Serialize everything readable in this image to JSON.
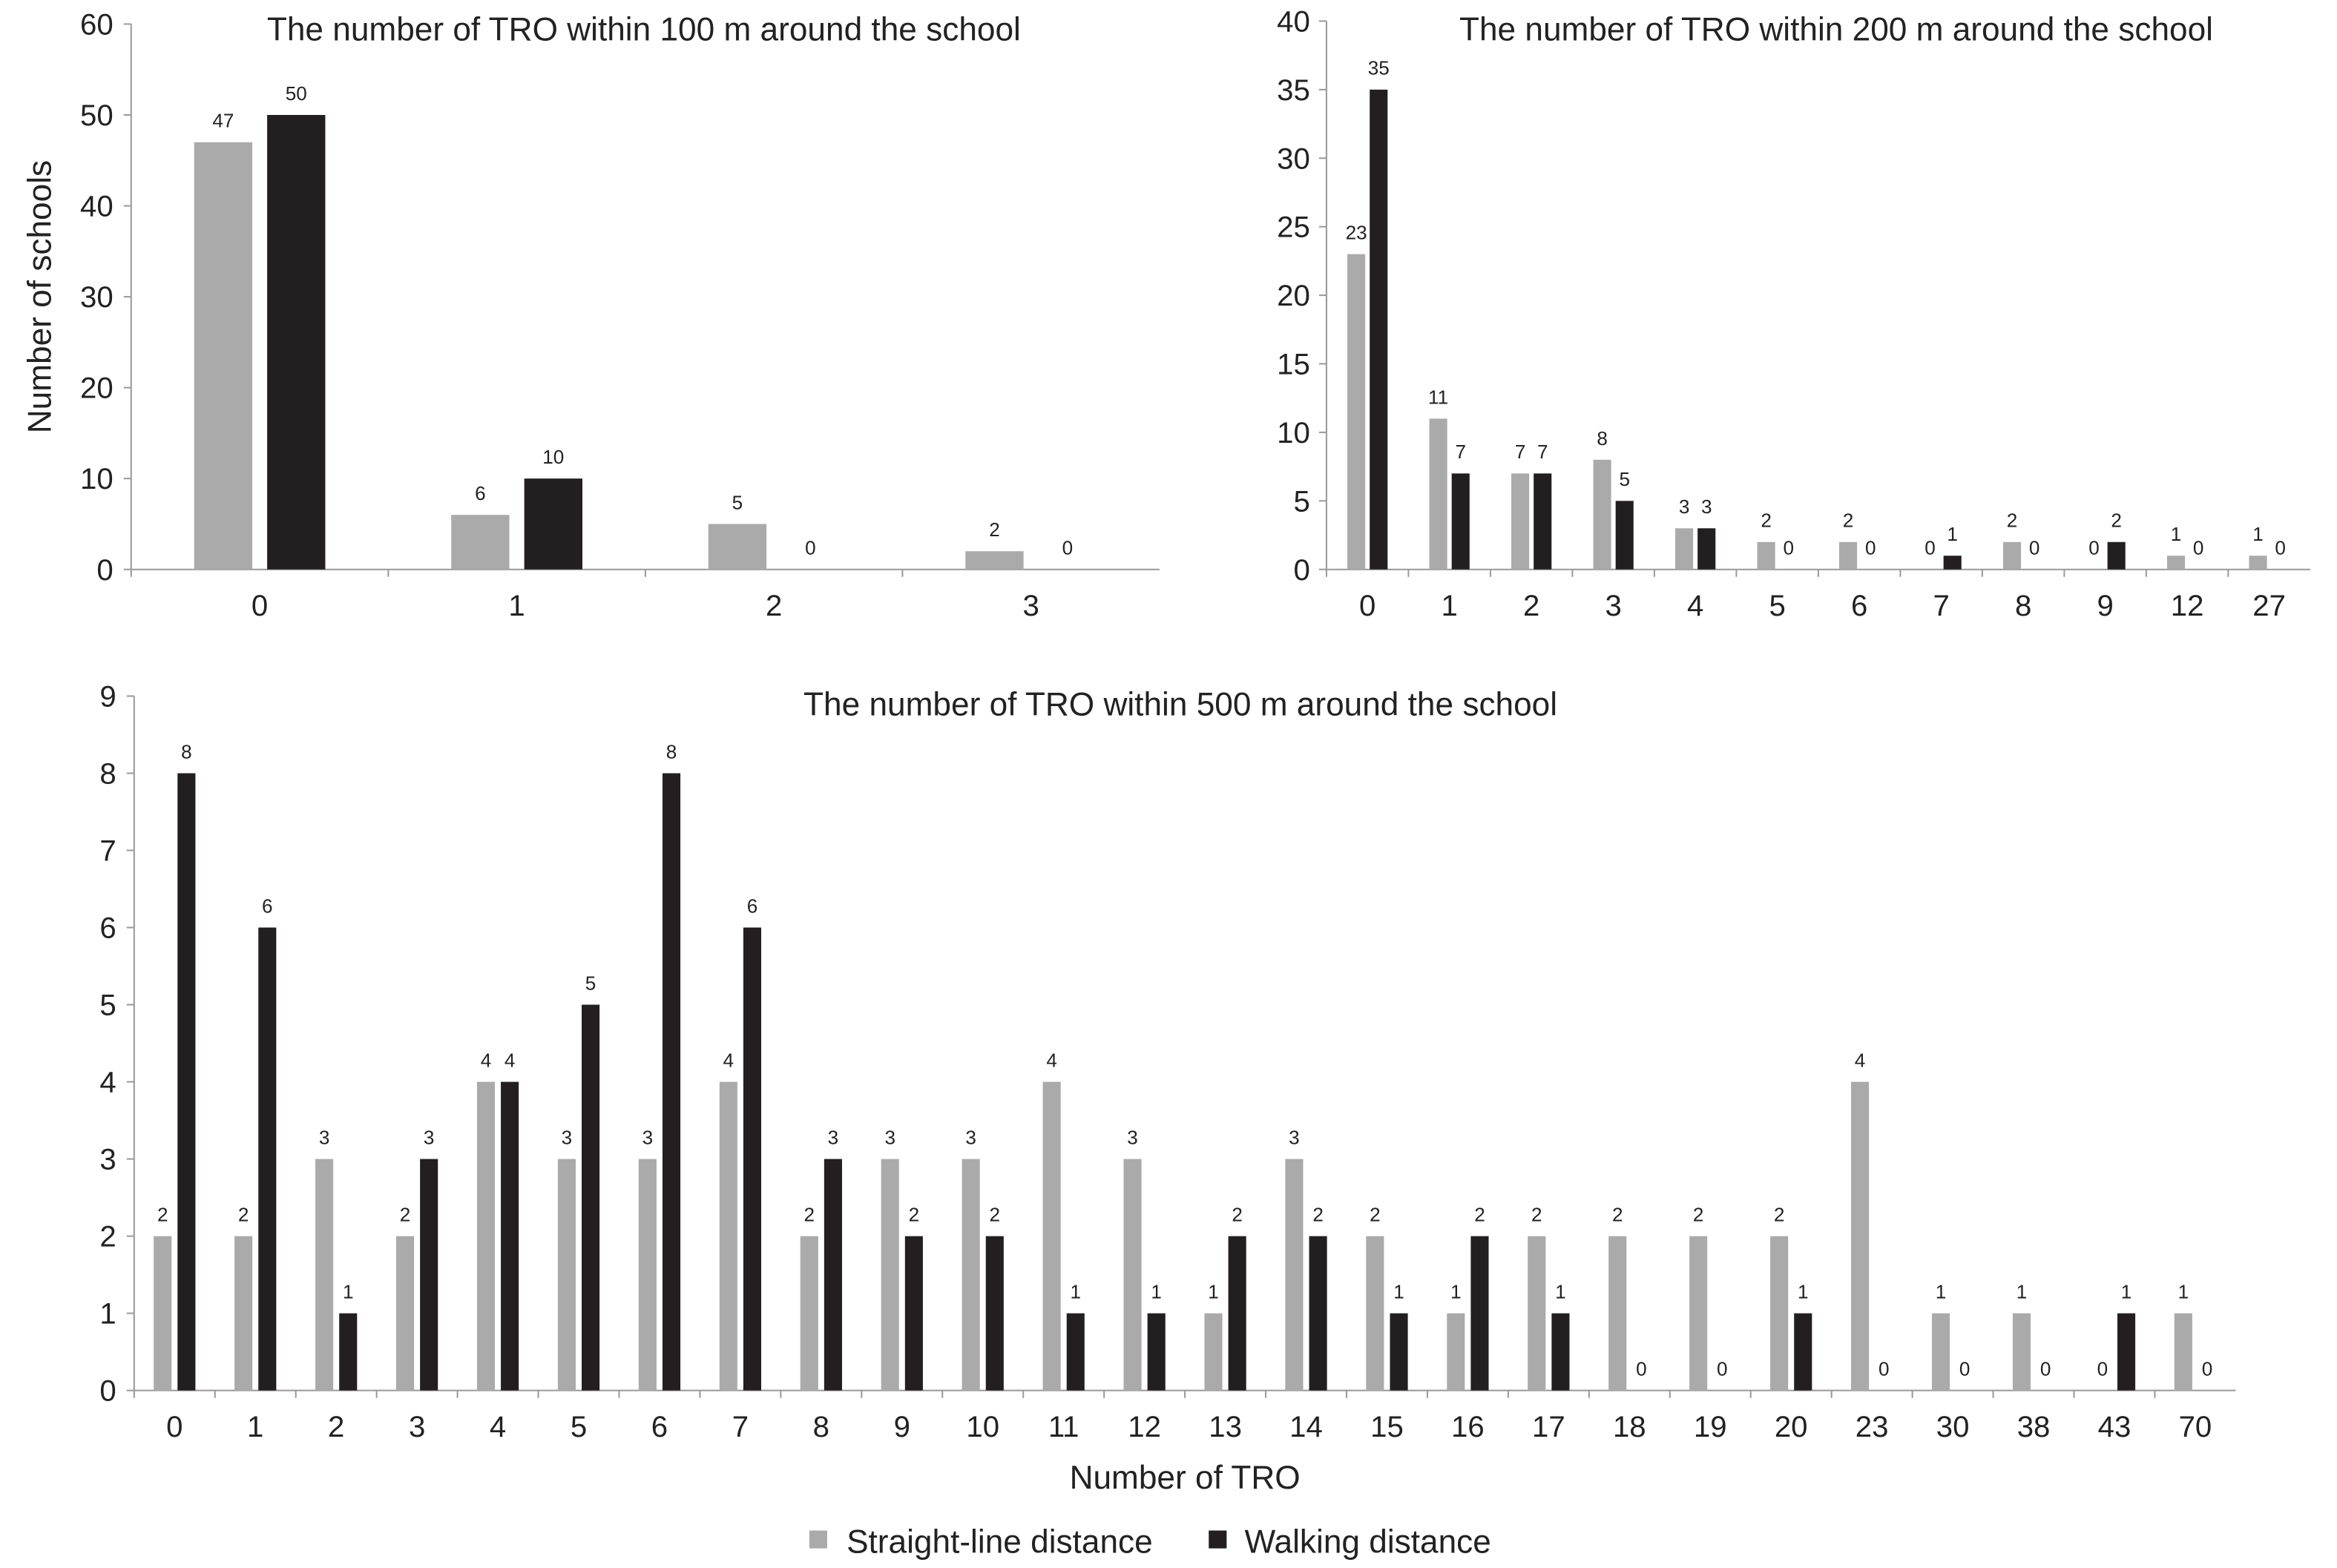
{
  "colors": {
    "straight": "#aaaaaa",
    "walking": "#231f20",
    "axis": "#999999"
  },
  "legend": {
    "straight": "Straight-line distance",
    "walking": "Walking distance"
  },
  "chart_data": [
    {
      "type": "bar",
      "title": "The number of TRO within 100 m around the school",
      "xlabel": "",
      "ylabel": "Number of schools",
      "ylim": [
        0,
        60
      ],
      "yticks": [
        0,
        10,
        20,
        30,
        40,
        50,
        60
      ],
      "categories": [
        "0",
        "1",
        "2",
        "3"
      ],
      "series": [
        {
          "name": "Straight-line distance",
          "values": [
            47,
            6,
            5,
            2
          ]
        },
        {
          "name": "Walking distance",
          "values": [
            50,
            10,
            0,
            0
          ]
        }
      ],
      "legend": "bottom"
    },
    {
      "type": "bar",
      "title": "The number of TRO within 200 m around the school",
      "xlabel": "",
      "ylabel": "",
      "ylim": [
        0,
        40
      ],
      "yticks": [
        0,
        5,
        10,
        15,
        20,
        25,
        30,
        35,
        40
      ],
      "categories": [
        "0",
        "1",
        "2",
        "3",
        "4",
        "5",
        "6",
        "7",
        "8",
        "9",
        "12",
        "27"
      ],
      "series": [
        {
          "name": "Straight-line distance",
          "values": [
            23,
            11,
            7,
            8,
            3,
            2,
            2,
            0,
            2,
            0,
            1,
            1
          ]
        },
        {
          "name": "Walking distance",
          "values": [
            35,
            7,
            7,
            5,
            3,
            0,
            0,
            1,
            0,
            2,
            0,
            0
          ]
        }
      ],
      "legend": "bottom"
    },
    {
      "type": "bar",
      "title": "The number of TRO within 500 m around the school",
      "xlabel": "Number of TRO",
      "ylabel": "",
      "ylim": [
        0,
        9
      ],
      "yticks": [
        0,
        1,
        2,
        3,
        4,
        5,
        6,
        7,
        8,
        9
      ],
      "categories": [
        "0",
        "1",
        "2",
        "3",
        "4",
        "5",
        "6",
        "7",
        "8",
        "9",
        "10",
        "11",
        "12",
        "13",
        "14",
        "15",
        "16",
        "17",
        "18",
        "19",
        "20",
        "23",
        "30",
        "38",
        "43",
        "70"
      ],
      "series": [
        {
          "name": "Straight-line distance",
          "values": [
            2,
            2,
            3,
            2,
            4,
            3,
            3,
            4,
            2,
            3,
            3,
            4,
            3,
            1,
            3,
            2,
            1,
            2,
            2,
            2,
            2,
            4,
            1,
            1,
            0,
            1
          ]
        },
        {
          "name": "Walking distance",
          "values": [
            8,
            6,
            1,
            3,
            4,
            5,
            8,
            6,
            3,
            2,
            2,
            1,
            1,
            2,
            2,
            1,
            2,
            1,
            0,
            0,
            1,
            0,
            0,
            0,
            1,
            0
          ]
        }
      ],
      "legend": "bottom"
    }
  ]
}
